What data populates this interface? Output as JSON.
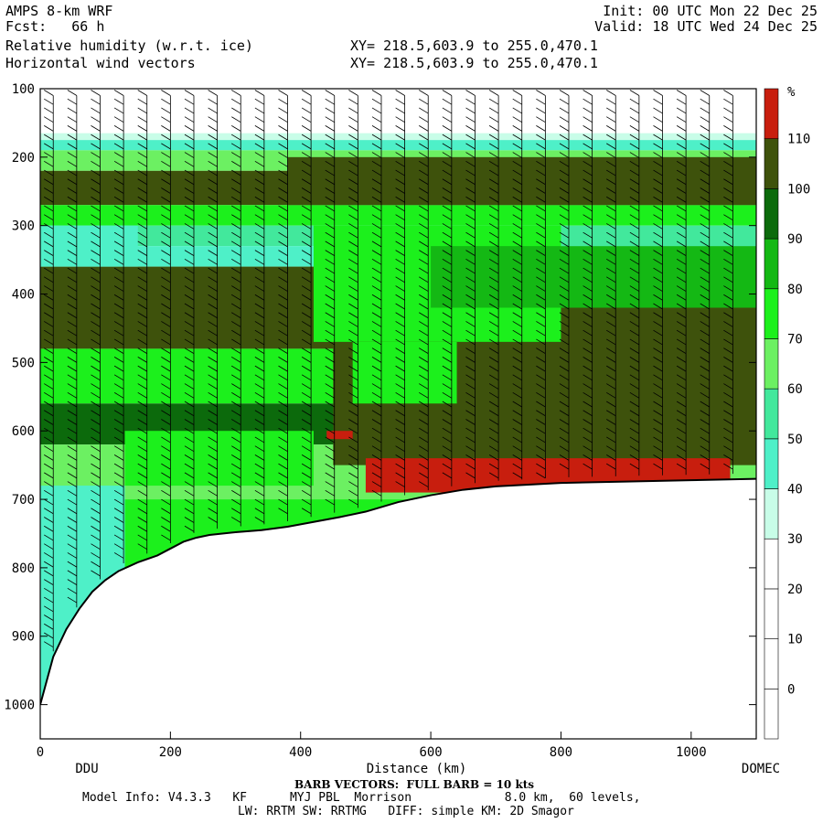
{
  "header": {
    "model": "AMPS 8-km WRF",
    "fcst": "Fcst:   66 h",
    "init": "Init: 00 UTC Mon 22 Dec 25",
    "valid": "Valid: 18 UTC Wed 24 Dec 25",
    "field1": "Relative humidity (w.r.t. ice)",
    "field2": "Horizontal wind vectors",
    "xy1": "XY= 218.5,603.9 to 255.0,470.1",
    "xy2": "XY= 218.5,603.9 to 255.0,470.1"
  },
  "chart_data": {
    "type": "heatmap",
    "title": "Relative humidity (w.r.t. ice)",
    "xlabel": "Distance (km)",
    "ylabel": "",
    "xlim": [
      0,
      1100
    ],
    "ylim": [
      1050,
      100
    ],
    "x_ticks": [
      0,
      200,
      400,
      600,
      800,
      1000
    ],
    "y_ticks": [
      100,
      200,
      300,
      400,
      500,
      600,
      700,
      800,
      900,
      1000
    ],
    "x_endpoint_labels": {
      "left": "DDU",
      "right": "DOMEC"
    },
    "colorbar": {
      "unit": "%",
      "levels": [
        0,
        10,
        20,
        30,
        40,
        50,
        60,
        70,
        80,
        90,
        100,
        110
      ],
      "colors": [
        "#ffffff",
        "#ffffff",
        "#ffffff",
        "#ffffff",
        "#c8fde8",
        "#4ef0c8",
        "#42e89c",
        "#6cf062",
        "#1cf01c",
        "#14b814",
        "#0c6a0c",
        "#3e520c",
        "#c81e0e"
      ]
    },
    "terrain_surface": {
      "x": [
        0,
        20,
        40,
        60,
        80,
        100,
        120,
        150,
        180,
        200,
        220,
        240,
        260,
        300,
        340,
        380,
        420,
        460,
        500,
        550,
        600,
        650,
        700,
        800,
        900,
        1000,
        1100
      ],
      "p": [
        1000,
        930,
        890,
        860,
        835,
        818,
        805,
        792,
        782,
        772,
        762,
        756,
        752,
        748,
        745,
        740,
        733,
        726,
        718,
        704,
        694,
        686,
        681,
        676,
        674,
        672,
        670
      ]
    },
    "wind_vectors": "Horizontal wind vectors (barbs)",
    "barb_note": "BARB VECTORS:  FULL BARB = 10 kts"
  },
  "footer": {
    "barb": "BARB VECTORS:  FULL BARB = 10 kts",
    "model_info": "Model Info: V4.3.3   KF      MYJ PBL  Morrison             8.0 km,  60 levels,",
    "physics": "LW: RRTM SW: RRTMG   DIFF: simple KM: 2D Smagor"
  },
  "colors": {
    "terrain": "#ffffff",
    "axis": "#000000"
  }
}
